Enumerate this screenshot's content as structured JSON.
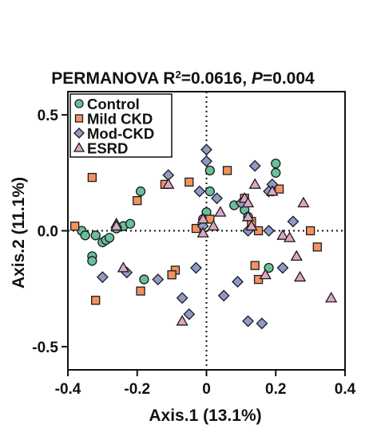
{
  "chart_data": {
    "type": "scatter",
    "title": "PERMANOVA R²=0.0616, P=0.004",
    "title_parts": {
      "stat": "PERMANOVA R",
      "sup": "2",
      "eq": "=0.0616, ",
      "p_label": "P",
      "p_value": "=0.004"
    },
    "xlabel": "Axis.1 (13.1%)",
    "ylabel": "Axis.2 (11.1%)",
    "xlim": [
      -0.4,
      0.4
    ],
    "ylim": [
      -0.6,
      0.6
    ],
    "xticks": [
      -0.4,
      -0.2,
      0,
      0.2,
      0.4
    ],
    "xtick_labels": [
      "-0.4",
      "-0.2",
      "0",
      "0.2",
      "0.4"
    ],
    "yticks": [
      -0.5,
      0,
      0.5
    ],
    "ytick_labels": [
      "-0.5",
      "0.0",
      "0.5"
    ],
    "grid": false,
    "reference_lines": {
      "x": 0,
      "y": 0,
      "style": "dotted"
    },
    "legend_position": "top-left",
    "series": [
      {
        "name": "Control",
        "marker": "circle",
        "color": "#69bf9b",
        "points": [
          [
            -0.33,
            -0.11
          ],
          [
            -0.33,
            -0.13
          ],
          [
            -0.36,
            0.0
          ],
          [
            -0.35,
            -0.02
          ],
          [
            -0.32,
            -0.02
          ],
          [
            -0.3,
            -0.05
          ],
          [
            -0.29,
            -0.04
          ],
          [
            -0.28,
            -0.03
          ],
          [
            -0.26,
            0.01
          ],
          [
            -0.24,
            0.02
          ],
          [
            -0.22,
            0.03
          ],
          [
            -0.19,
            0.17
          ],
          [
            -0.18,
            -0.21
          ],
          [
            0.01,
            0.26
          ],
          [
            0.01,
            0.17
          ],
          [
            0.0,
            0.08
          ],
          [
            -0.01,
            0.05
          ],
          [
            0.08,
            0.11
          ],
          [
            0.11,
            0.09
          ],
          [
            0.12,
            0.06
          ],
          [
            0.18,
            -0.16
          ],
          [
            0.2,
            0.29
          ],
          [
            0.2,
            0.25
          ],
          [
            0.19,
            0.17
          ]
        ]
      },
      {
        "name": "Mild CKD",
        "marker": "square",
        "color": "#f2935e",
        "points": [
          [
            -0.33,
            0.23
          ],
          [
            -0.38,
            0.02
          ],
          [
            -0.32,
            -0.3
          ],
          [
            -0.19,
            -0.26
          ],
          [
            -0.09,
            -0.17
          ],
          [
            -0.1,
            -0.19
          ],
          [
            -0.2,
            0.13
          ],
          [
            -0.12,
            0.2
          ],
          [
            -0.05,
            0.21
          ],
          [
            -0.03,
            0.01
          ],
          [
            0.01,
            0.05
          ],
          [
            0.06,
            0.26
          ],
          [
            0.11,
            0.14
          ],
          [
            0.13,
            0.04
          ],
          [
            0.14,
            -0.15
          ],
          [
            0.15,
            -0.21
          ],
          [
            0.15,
            0.0
          ],
          [
            0.21,
            0.18
          ],
          [
            0.3,
            0.0
          ],
          [
            0.32,
            -0.07
          ]
        ]
      },
      {
        "name": "Mod-CKD",
        "marker": "diamond",
        "color": "#8f9ac8",
        "points": [
          [
            -0.3,
            -0.2
          ],
          [
            -0.23,
            -0.18
          ],
          [
            -0.14,
            -0.21
          ],
          [
            -0.11,
            0.24
          ],
          [
            -0.07,
            -0.29
          ],
          [
            -0.05,
            -0.36
          ],
          [
            -0.02,
            0.17
          ],
          [
            -0.03,
            -0.16
          ],
          [
            -0.01,
            0.02
          ],
          [
            0.0,
            0.35
          ],
          [
            0.0,
            0.3
          ],
          [
            0.03,
            0.14
          ],
          [
            0.05,
            -0.28
          ],
          [
            0.09,
            -0.22
          ],
          [
            0.1,
            0.12
          ],
          [
            0.12,
            0.0
          ],
          [
            0.12,
            -0.39
          ],
          [
            0.14,
            0.28
          ],
          [
            0.16,
            -0.4
          ],
          [
            0.18,
            0.17
          ],
          [
            0.18,
            0.0
          ],
          [
            0.19,
            0.2
          ],
          [
            0.22,
            -0.16
          ],
          [
            0.25,
            0.04
          ]
        ]
      },
      {
        "name": "ESRD",
        "marker": "triangle",
        "color": "#dea6c9",
        "points": [
          [
            -0.26,
            0.03
          ],
          [
            -0.26,
            0.02
          ],
          [
            -0.24,
            -0.16
          ],
          [
            -0.11,
            0.2
          ],
          [
            -0.07,
            -0.39
          ],
          [
            -0.01,
            0.05
          ],
          [
            -0.01,
            -0.01
          ],
          [
            0.02,
            0.02
          ],
          [
            0.04,
            0.08
          ],
          [
            0.11,
            0.14
          ],
          [
            0.12,
            0.12
          ],
          [
            0.12,
            0.06
          ],
          [
            0.13,
            0.02
          ],
          [
            0.14,
            0.2
          ],
          [
            0.17,
            -0.19
          ],
          [
            0.19,
            0.17
          ],
          [
            0.22,
            -0.02
          ],
          [
            0.24,
            -0.03
          ],
          [
            0.26,
            -0.11
          ],
          [
            0.27,
            -0.2
          ],
          [
            0.28,
            0.12
          ],
          [
            0.36,
            -0.29
          ]
        ]
      }
    ]
  }
}
